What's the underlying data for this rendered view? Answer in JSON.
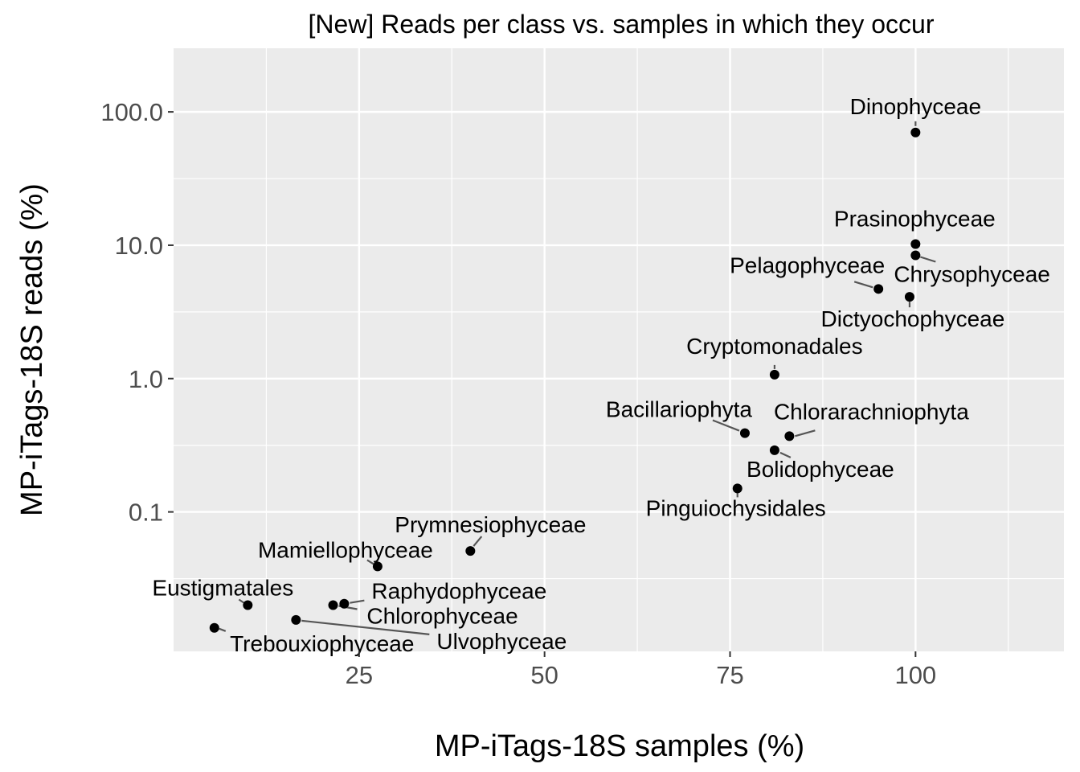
{
  "chart_data": {
    "type": "scatter",
    "title": "[New] Reads per class vs. samples in which they occur",
    "xlabel": "MP-iTags-18S samples (%)",
    "ylabel": "MP-iTags-18S reads (%)",
    "x_scale": "linear",
    "y_scale": "log10",
    "xlim": [
      0,
      120
    ],
    "ylim": [
      0.009,
      300
    ],
    "x_ticks": [
      25,
      50,
      75,
      100
    ],
    "x_tick_labels": [
      "25",
      "50",
      "75",
      100
    ],
    "y_ticks": [
      0.1,
      1,
      10,
      100
    ],
    "y_tick_labels": [
      "0.1",
      "1.0",
      "10.0",
      "100.0"
    ],
    "grid": true,
    "colors": {
      "panel": "#ebebeb",
      "grid": "#ffffff",
      "point": "#000000",
      "segment": "#555555"
    },
    "points": [
      {
        "label": "Dinophyceae",
        "x": 100,
        "y": 70
      },
      {
        "label": "Prasinophyceae",
        "x": 100,
        "y": 10.2
      },
      {
        "label": "Chrysophyceae",
        "x": 100,
        "y": 8.4
      },
      {
        "label": "Pelagophyceae",
        "x": 95,
        "y": 4.7
      },
      {
        "label": "Dictyochophyceae",
        "x": 99.2,
        "y": 4.1
      },
      {
        "label": "Cryptomonadales",
        "x": 81,
        "y": 1.07
      },
      {
        "label": "Bacillariophyta",
        "x": 77,
        "y": 0.39
      },
      {
        "label": "Chlorarachniophyta",
        "x": 83,
        "y": 0.37
      },
      {
        "label": "Bolidophyceae",
        "x": 81,
        "y": 0.29
      },
      {
        "label": "Pinguiochysidales",
        "x": 76,
        "y": 0.15
      },
      {
        "label": "Prymnesiophyceae",
        "x": 40,
        "y": 0.051
      },
      {
        "label": "Mamiellophyceae",
        "x": 27.5,
        "y": 0.039
      },
      {
        "label": "Eustigmatales",
        "x": 10,
        "y": 0.02
      },
      {
        "label": "Raphydophyceae",
        "x": 23,
        "y": 0.0205
      },
      {
        "label": "Chlorophyceae",
        "x": 21.5,
        "y": 0.02
      },
      {
        "label": "Ulvophyceae",
        "x": 16.5,
        "y": 0.0155
      },
      {
        "label": "Trebouxiophyceae",
        "x": 5.5,
        "y": 0.0135
      }
    ]
  }
}
